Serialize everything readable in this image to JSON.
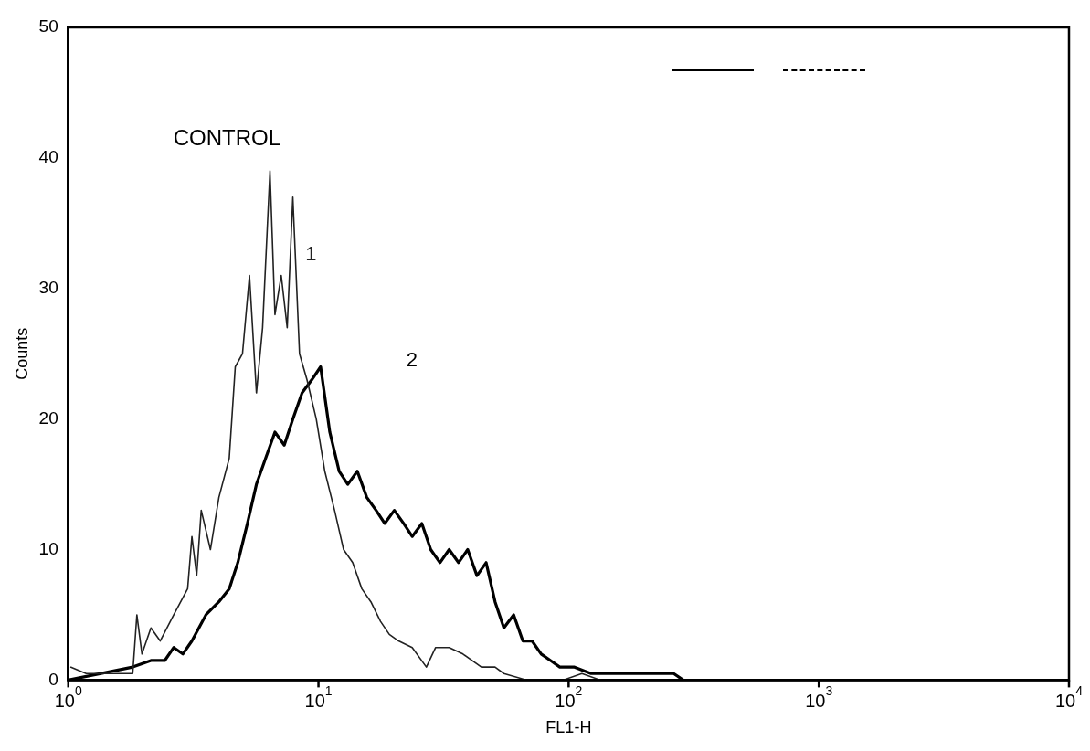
{
  "chart_data": {
    "type": "line",
    "xlabel": "FL1-H",
    "ylabel": "Counts",
    "log": "x",
    "xlim": [
      1,
      10000
    ],
    "xticks": [
      {
        "value": 1,
        "label": "10$^{0}$"
      },
      {
        "value": 10,
        "label": "10$^{1}$"
      },
      {
        "value": 100,
        "label": "10$^{2}$"
      },
      {
        "value": 1000,
        "label": "10$^{3}$"
      },
      {
        "value": 10000,
        "label": "10$^{4}$"
      }
    ],
    "ylim": [
      0,
      50
    ],
    "yticks": [
      0,
      10,
      20,
      30,
      40,
      50
    ],
    "grid": false,
    "legend": false,
    "marker": "none",
    "line_style": "solid",
    "annotations": [
      "CONTROL"
    ],
    "series": [
      {
        "name": "1",
        "color": "#222222",
        "x": [
          1.02,
          1.18,
          1.53,
          1.81,
          1.88,
          1.97,
          2.14,
          2.33,
          2.64,
          3.0,
          3.12,
          3.26,
          3.4,
          3.7,
          4.0,
          4.4,
          4.65,
          4.97,
          5.3,
          5.65,
          5.98,
          6.4,
          6.7,
          7.1,
          7.5,
          7.9,
          8.4,
          9.0,
          9.8,
          10.6,
          11.6,
          12.6,
          13.7,
          14.9,
          16.2,
          17.7,
          19.2,
          20.9,
          23.7,
          27.0,
          29.4,
          33.3,
          37.8,
          44.8,
          50.8,
          55.1,
          68,
          95,
          113,
          134
        ],
        "values": [
          1,
          0.5,
          0.5,
          0.5,
          5,
          2,
          4,
          3,
          5,
          7,
          11,
          8,
          13,
          10,
          14,
          17,
          24,
          25,
          31,
          22,
          27,
          39,
          28,
          31,
          27,
          37,
          25,
          23,
          20,
          16,
          13,
          10,
          9,
          7,
          6,
          4.5,
          3.5,
          3,
          2.5,
          1,
          2.5,
          2.5,
          2,
          1,
          1,
          0.5,
          0,
          0,
          0.5,
          0
        ]
      },
      {
        "name": "2",
        "color": "#000000",
        "x": [
          1.0,
          1.81,
          2.14,
          2.43,
          2.64,
          2.87,
          3.12,
          3.55,
          4.0,
          4.4,
          4.76,
          5.2,
          5.65,
          6.15,
          6.7,
          7.3,
          7.9,
          8.6,
          9.4,
          10.2,
          11.1,
          12.1,
          13.1,
          14.3,
          15.6,
          17.0,
          18.4,
          20.1,
          21.9,
          23.7,
          25.9,
          28.1,
          30.6,
          33.3,
          36.3,
          39.5,
          43.0,
          46.8,
          50.8,
          55.1,
          60.3,
          65.6,
          71.4,
          77.7,
          84.7,
          92.2,
          105,
          123,
          145,
          173,
          215,
          263,
          287
        ],
        "values": [
          0,
          1,
          1.5,
          1.5,
          2.5,
          2,
          3,
          5,
          6,
          7,
          9,
          12,
          15,
          17,
          19,
          18,
          20,
          22,
          23,
          24,
          19,
          16,
          15,
          16,
          14,
          13,
          12,
          13,
          12,
          11,
          12,
          10,
          9,
          10,
          9,
          10,
          8,
          9,
          6,
          4,
          5,
          3,
          3,
          2,
          1.5,
          1,
          1,
          0.5,
          0.5,
          0.5,
          0.5,
          0.5,
          0
        ]
      }
    ]
  }
}
